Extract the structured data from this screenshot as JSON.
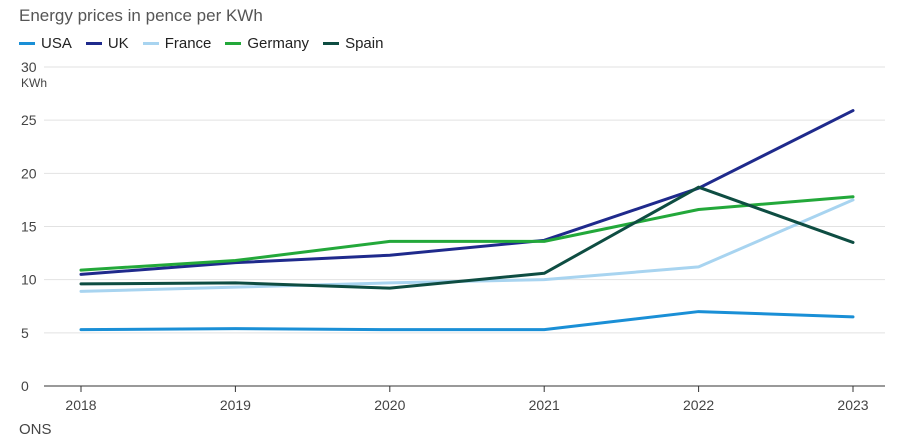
{
  "chart_data": {
    "type": "line",
    "title": "Energy prices in pence per KWh",
    "ylabel": "KWh",
    "xlabel": "",
    "x": [
      "2018",
      "2019",
      "2020",
      "2021",
      "2022",
      "2023"
    ],
    "ylim": [
      0,
      30
    ],
    "yticks": [
      0,
      5,
      10,
      15,
      20,
      25,
      30
    ],
    "grid": true,
    "legend": "top-left",
    "series": [
      {
        "name": "USA",
        "color": "#1a8fd6",
        "values": [
          5.3,
          5.4,
          5.3,
          5.3,
          7.0,
          6.5
        ]
      },
      {
        "name": "UK",
        "color": "#1f2a8c",
        "values": [
          10.5,
          11.6,
          12.3,
          13.7,
          18.6,
          25.9
        ]
      },
      {
        "name": "France",
        "color": "#a8d4f0",
        "values": [
          8.9,
          9.3,
          9.7,
          10.0,
          11.2,
          17.5
        ]
      },
      {
        "name": "Germany",
        "color": "#23a83a",
        "values": [
          10.9,
          11.8,
          13.6,
          13.6,
          16.6,
          17.8
        ]
      },
      {
        "name": "Spain",
        "color": "#0e4d42",
        "values": [
          9.6,
          9.7,
          9.2,
          10.6,
          18.7,
          13.5
        ]
      }
    ]
  },
  "source": "ONS"
}
